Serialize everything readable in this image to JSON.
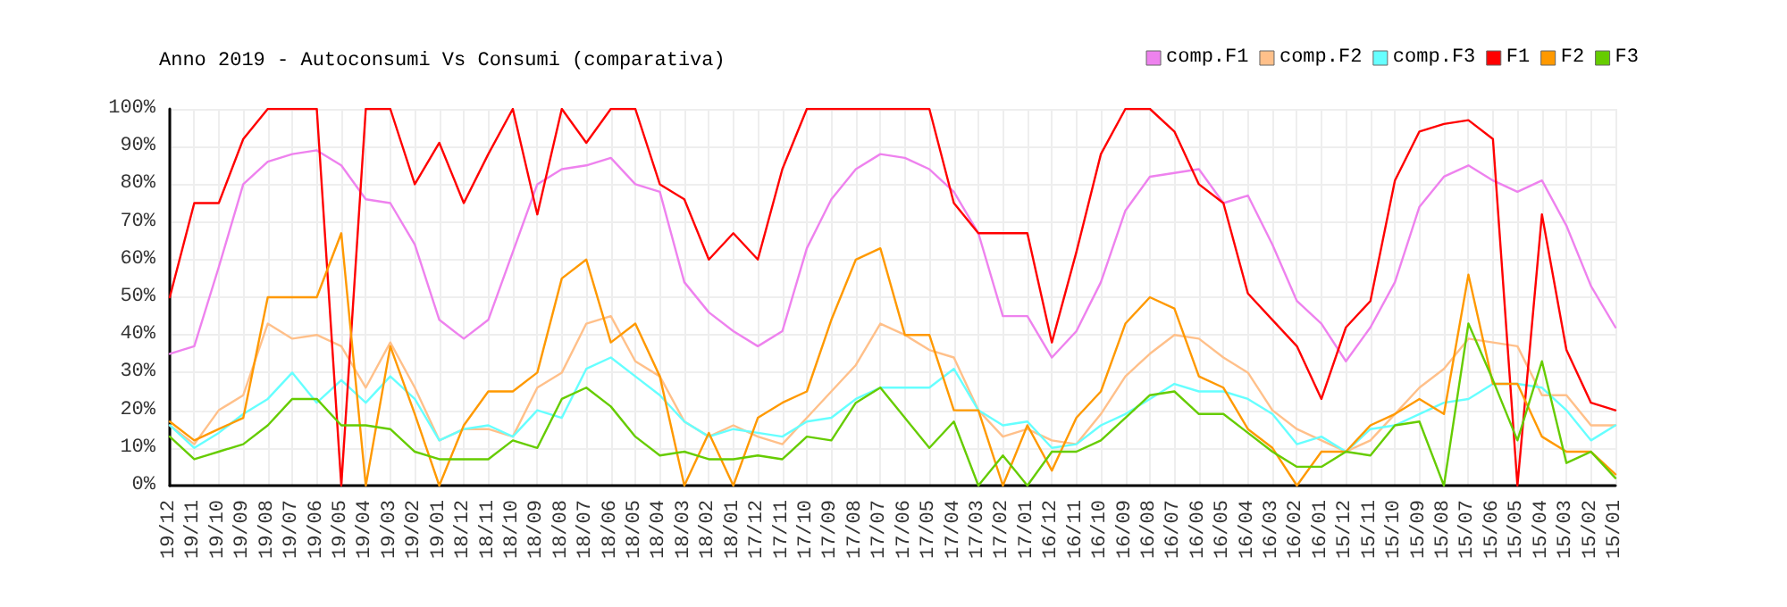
{
  "chart_data": {
    "type": "line",
    "title": "Anno 2019 - Autoconsumi Vs Consumi (comparativa)",
    "categories": [
      "19/12",
      "19/11",
      "19/10",
      "19/09",
      "19/08",
      "19/07",
      "19/06",
      "19/05",
      "19/04",
      "19/03",
      "19/02",
      "19/01",
      "18/12",
      "18/11",
      "18/10",
      "18/09",
      "18/08",
      "18/07",
      "18/06",
      "18/05",
      "18/04",
      "18/03",
      "18/02",
      "18/01",
      "17/12",
      "17/11",
      "17/10",
      "17/09",
      "17/08",
      "17/07",
      "17/06",
      "17/05",
      "17/04",
      "17/03",
      "17/02",
      "17/01",
      "16/12",
      "16/11",
      "16/10",
      "16/09",
      "16/08",
      "16/07",
      "16/06",
      "16/05",
      "16/04",
      "16/03",
      "16/02",
      "16/01",
      "15/12",
      "15/11",
      "15/10",
      "15/09",
      "15/08",
      "15/07",
      "15/06",
      "15/05",
      "15/04",
      "15/03",
      "15/02",
      "15/01"
    ],
    "series": [
      {
        "name": "comp.F1",
        "color": "#ee82ee",
        "values": [
          35,
          37,
          58,
          80,
          86,
          88,
          89,
          85,
          76,
          75,
          64,
          44,
          39,
          44,
          62,
          80,
          84,
          85,
          87,
          80,
          78,
          54,
          46,
          41,
          37,
          41,
          63,
          76,
          84,
          88,
          87,
          84,
          78,
          67,
          45,
          45,
          34,
          41,
          54,
          73,
          82,
          83,
          84,
          75,
          77,
          64,
          49,
          43,
          33,
          42,
          54,
          74,
          82,
          85,
          81,
          78,
          81,
          69,
          53,
          42
        ]
      },
      {
        "name": "comp.F2",
        "color": "#ffc08a",
        "values": [
          16,
          11,
          20,
          24,
          43,
          39,
          40,
          37,
          26,
          38,
          26,
          12,
          15,
          15,
          13,
          26,
          30,
          43,
          45,
          33,
          29,
          17,
          13,
          16,
          13,
          11,
          18,
          25,
          32,
          43,
          40,
          36,
          34,
          20,
          13,
          15,
          12,
          11,
          19,
          29,
          35,
          40,
          39,
          34,
          30,
          20,
          15,
          12,
          9,
          12,
          19,
          26,
          31,
          39,
          38,
          37,
          24,
          24,
          16,
          16
        ]
      },
      {
        "name": "comp.F3",
        "color": "#66ffff",
        "values": [
          16,
          10,
          14,
          19,
          23,
          30,
          22,
          28,
          22,
          29,
          23,
          12,
          15,
          16,
          13,
          20,
          18,
          31,
          34,
          29,
          24,
          17,
          13,
          15,
          14,
          13,
          17,
          18,
          23,
          26,
          26,
          26,
          31,
          20,
          16,
          17,
          10,
          11,
          16,
          19,
          23,
          27,
          25,
          25,
          23,
          19,
          11,
          13,
          9,
          15,
          16,
          19,
          22,
          23,
          27,
          27,
          26,
          20,
          12,
          16
        ]
      },
      {
        "name": "F1",
        "color": "#ff0000",
        "values": [
          50,
          75,
          75,
          92,
          100,
          100,
          100,
          0,
          100,
          100,
          80,
          91,
          75,
          88,
          100,
          72,
          100,
          91,
          100,
          100,
          80,
          76,
          60,
          67,
          60,
          84,
          100,
          100,
          100,
          100,
          100,
          100,
          75,
          67,
          67,
          67,
          38,
          62,
          88,
          100,
          100,
          94,
          80,
          75,
          51,
          44,
          37,
          23,
          42,
          49,
          81,
          94,
          96,
          97,
          92,
          0,
          72,
          36,
          22,
          20
        ]
      },
      {
        "name": "F2",
        "color": "#ff9900",
        "values": [
          17,
          12,
          15,
          18,
          50,
          50,
          50,
          67,
          0,
          37,
          19,
          0,
          16,
          25,
          25,
          30,
          55,
          60,
          38,
          43,
          29,
          0,
          14,
          0,
          18,
          22,
          25,
          44,
          60,
          63,
          40,
          40,
          20,
          20,
          0,
          16,
          4,
          18,
          25,
          43,
          50,
          47,
          29,
          26,
          15,
          10,
          0,
          9,
          9,
          16,
          19,
          23,
          19,
          56,
          27,
          27,
          13,
          9,
          9,
          3
        ]
      },
      {
        "name": "F3",
        "color": "#66cc00",
        "values": [
          13,
          7,
          9,
          11,
          16,
          23,
          23,
          16,
          16,
          15,
          9,
          7,
          7,
          7,
          12,
          10,
          23,
          26,
          21,
          13,
          8,
          9,
          7,
          7,
          8,
          7,
          13,
          12,
          22,
          26,
          18,
          10,
          17,
          0,
          8,
          0,
          9,
          9,
          12,
          18,
          24,
          25,
          19,
          19,
          14,
          9,
          5,
          5,
          9,
          8,
          16,
          17,
          0,
          43,
          28,
          12,
          33,
          6,
          9,
          2
        ]
      }
    ],
    "ylim": [
      0,
      100
    ],
    "yticks": [
      {
        "value": 0,
        "label": "0%"
      },
      {
        "value": 10,
        "label": "10%"
      },
      {
        "value": 20,
        "label": "20%"
      },
      {
        "value": 30,
        "label": "30%"
      },
      {
        "value": 40,
        "label": "40%"
      },
      {
        "value": 50,
        "label": "50%"
      },
      {
        "value": 60,
        "label": "60%"
      },
      {
        "value": 70,
        "label": "70%"
      },
      {
        "value": 80,
        "label": "80%"
      },
      {
        "value": 90,
        "label": "90%"
      },
      {
        "value": 100,
        "label": "100%"
      }
    ],
    "grid": true,
    "legend": "top right",
    "marker": "none",
    "line_style": "solid"
  }
}
